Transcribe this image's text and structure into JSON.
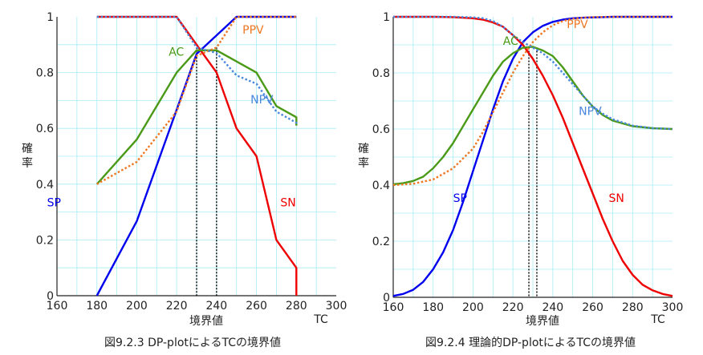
{
  "chart_data": [
    {
      "type": "line",
      "caption": "図9.2.3 DP-plotによるTCの境界値",
      "xlabel": "境界値",
      "x_unit": "TC",
      "ylabel": "確率",
      "xlim": [
        160,
        300
      ],
      "ylim": [
        0,
        1
      ],
      "xticks": [
        160,
        180,
        200,
        220,
        240,
        260,
        280,
        300
      ],
      "yticks": [
        0,
        0.2,
        0.4,
        0.6,
        0.8,
        1
      ],
      "ytick_labels": [
        "0",
        "0.2",
        "0.4",
        "0.6",
        "0.8",
        "1"
      ],
      "grid": true,
      "cutoff_lines": [
        230,
        240
      ],
      "series": [
        {
          "name": "SP",
          "color": "#0000ee",
          "style": "solid",
          "x": [
            180,
            200,
            230,
            250,
            280
          ],
          "y": [
            0,
            0.267,
            0.867,
            1,
            1
          ]
        },
        {
          "name": "SN",
          "color": "#ee0000",
          "style": "solid",
          "x": [
            180,
            220,
            230,
            240,
            250,
            260,
            270,
            280,
            280
          ],
          "y": [
            1,
            1,
            0.9,
            0.8,
            0.6,
            0.5,
            0.2,
            0.1,
            0
          ]
        },
        {
          "name": "AC",
          "color": "#4a9a18",
          "style": "solid",
          "x": [
            180,
            200,
            220,
            230,
            240,
            260,
            270,
            280,
            280
          ],
          "y": [
            0.4,
            0.56,
            0.8,
            0.88,
            0.88,
            0.8,
            0.68,
            0.64,
            0.61
          ]
        },
        {
          "name": "PPV",
          "color": "#ee7722",
          "style": "dotted",
          "x": [
            180,
            200,
            220,
            230,
            240,
            250,
            280
          ],
          "y": [
            0.4,
            0.48,
            0.66,
            0.86,
            0.89,
            1,
            1
          ]
        },
        {
          "name": "NPV",
          "color": "#4a88dd",
          "style": "dotted",
          "x": [
            180,
            220,
            230,
            240,
            250,
            260,
            270,
            280,
            280
          ],
          "y": [
            1,
            1,
            0.89,
            0.87,
            0.79,
            0.76,
            0.66,
            0.62,
            0.61
          ]
        }
      ],
      "label_positions": {
        "SP": [
          155,
          0.32
        ],
        "SN": [
          272,
          0.32
        ],
        "AC": [
          216,
          0.86
        ],
        "PPV": [
          253,
          0.94
        ],
        "NPV": [
          257,
          0.69
        ]
      }
    },
    {
      "type": "line",
      "caption": "図9.2.4 理論的DP-plotによるTCの境界値",
      "xlabel": "境界値",
      "x_unit": "TC",
      "ylabel": "確率",
      "xlim": [
        160,
        300
      ],
      "ylim": [
        0,
        1
      ],
      "xticks": [
        160,
        180,
        200,
        220,
        240,
        260,
        280,
        300
      ],
      "yticks": [
        0,
        0.2,
        0.4,
        0.6,
        0.8,
        1
      ],
      "ytick_labels": [
        "0",
        "0.2",
        "0.4",
        "0.6",
        "0.8",
        "1"
      ],
      "grid": true,
      "cutoff_lines": [
        228,
        232
      ],
      "series": [
        {
          "name": "SP",
          "color": "#0000ee",
          "style": "solid",
          "x": [
            160,
            165,
            170,
            175,
            180,
            185,
            190,
            195,
            200,
            205,
            210,
            215,
            220,
            225,
            230,
            235,
            240,
            245,
            250,
            255,
            260,
            265,
            270,
            280,
            290,
            300
          ],
          "y": [
            0.005,
            0.012,
            0.027,
            0.055,
            0.1,
            0.16,
            0.24,
            0.34,
            0.45,
            0.56,
            0.67,
            0.77,
            0.85,
            0.91,
            0.945,
            0.968,
            0.982,
            0.99,
            0.995,
            0.997,
            0.998,
            0.999,
            1,
            1,
            1,
            1
          ]
        },
        {
          "name": "SN",
          "color": "#ee0000",
          "style": "solid",
          "x": [
            160,
            170,
            180,
            190,
            200,
            205,
            210,
            215,
            220,
            225,
            230,
            235,
            240,
            245,
            250,
            255,
            260,
            265,
            270,
            275,
            280,
            285,
            290,
            295,
            300
          ],
          "y": [
            1,
            1,
            1,
            0.999,
            0.995,
            0.99,
            0.98,
            0.965,
            0.935,
            0.9,
            0.85,
            0.79,
            0.72,
            0.64,
            0.55,
            0.46,
            0.37,
            0.28,
            0.2,
            0.13,
            0.08,
            0.045,
            0.025,
            0.012,
            0.005
          ]
        },
        {
          "name": "AC",
          "color": "#4a9a18",
          "style": "solid",
          "x": [
            160,
            165,
            170,
            175,
            180,
            185,
            190,
            195,
            200,
            205,
            210,
            215,
            220,
            225,
            230,
            235,
            240,
            245,
            250,
            255,
            260,
            265,
            270,
            280,
            290,
            300
          ],
          "y": [
            0.403,
            0.407,
            0.415,
            0.43,
            0.46,
            0.5,
            0.55,
            0.61,
            0.67,
            0.73,
            0.79,
            0.84,
            0.87,
            0.89,
            0.893,
            0.88,
            0.86,
            0.82,
            0.77,
            0.72,
            0.68,
            0.65,
            0.63,
            0.61,
            0.603,
            0.6
          ]
        },
        {
          "name": "PPV",
          "color": "#ee7722",
          "style": "dotted",
          "x": [
            160,
            170,
            180,
            190,
            200,
            205,
            210,
            215,
            220,
            225,
            230,
            235,
            240,
            245,
            250,
            255,
            260,
            270,
            280,
            290,
            300
          ],
          "y": [
            0.4,
            0.405,
            0.42,
            0.46,
            0.53,
            0.59,
            0.66,
            0.73,
            0.8,
            0.86,
            0.91,
            0.945,
            0.97,
            0.985,
            0.993,
            0.997,
            0.999,
            1,
            1,
            1,
            1
          ]
        },
        {
          "name": "NPV",
          "color": "#4a88dd",
          "style": "dotted",
          "x": [
            160,
            170,
            180,
            190,
            200,
            205,
            210,
            215,
            220,
            225,
            230,
            235,
            240,
            245,
            250,
            255,
            260,
            265,
            270,
            280,
            290,
            300
          ],
          "y": [
            1,
            1,
            1,
            1,
            0.998,
            0.995,
            0.985,
            0.965,
            0.935,
            0.91,
            0.89,
            0.87,
            0.84,
            0.8,
            0.76,
            0.72,
            0.68,
            0.655,
            0.635,
            0.612,
            0.603,
            0.6
          ]
        }
      ],
      "label_positions": {
        "SP": [
          190,
          0.34
        ],
        "SN": [
          268,
          0.34
        ],
        "AC": [
          215,
          0.9
        ],
        "PPV": [
          247,
          0.96
        ],
        "NPV": [
          253,
          0.65
        ]
      }
    }
  ]
}
